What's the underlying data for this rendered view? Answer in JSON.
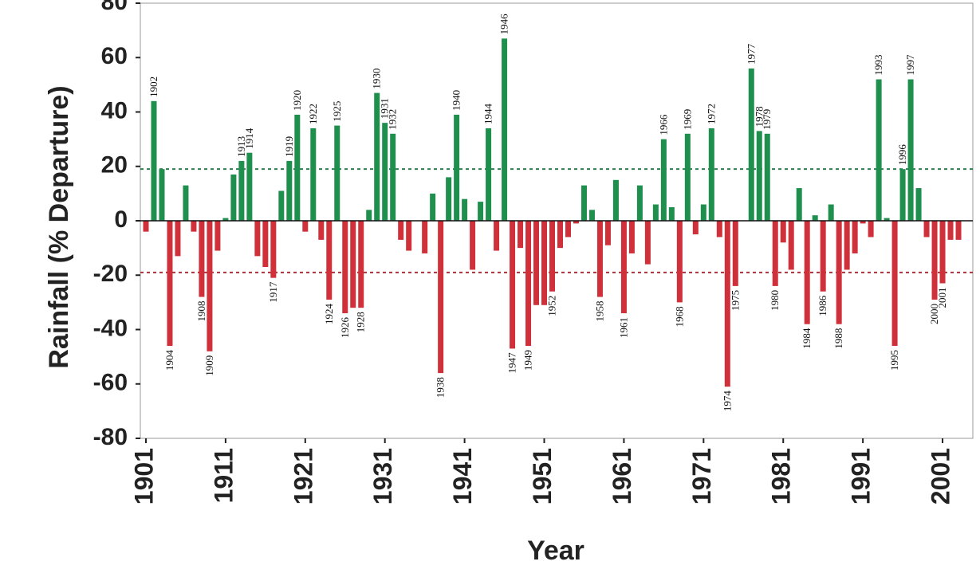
{
  "chart_data": {
    "type": "bar",
    "x_label": "Year",
    "y_label": "Rainfall (% Departure)",
    "x": [
      1901,
      1902,
      1903,
      1904,
      1905,
      1906,
      1907,
      1908,
      1909,
      1910,
      1911,
      1912,
      1913,
      1914,
      1915,
      1916,
      1917,
      1918,
      1919,
      1920,
      1921,
      1922,
      1923,
      1924,
      1925,
      1926,
      1927,
      1928,
      1929,
      1930,
      1931,
      1932,
      1933,
      1934,
      1935,
      1936,
      1937,
      1938,
      1939,
      1940,
      1941,
      1942,
      1943,
      1944,
      1945,
      1946,
      1947,
      1948,
      1949,
      1950,
      1951,
      1952,
      1953,
      1954,
      1955,
      1956,
      1957,
      1958,
      1959,
      1960,
      1961,
      1962,
      1963,
      1964,
      1965,
      1966,
      1967,
      1968,
      1969,
      1970,
      1971,
      1972,
      1973,
      1974,
      1975,
      1976,
      1977,
      1978,
      1979,
      1980,
      1981,
      1982,
      1983,
      1984,
      1985,
      1986,
      1987,
      1988,
      1989,
      1990,
      1991,
      1992,
      1993,
      1994,
      1995,
      1996,
      1997,
      1998,
      1999,
      2000,
      2001,
      2002,
      2003
    ],
    "values": [
      -4,
      44,
      19,
      -46,
      -13,
      13,
      -4,
      -28,
      -48,
      -11,
      1,
      17,
      22,
      25,
      -13,
      -17,
      -21,
      11,
      22,
      39,
      -4,
      34,
      -7,
      -29,
      35,
      -34,
      -32,
      -32,
      4,
      47,
      36,
      32,
      -7,
      -11,
      0,
      -12,
      10,
      -56,
      16,
      39,
      8,
      -18,
      7,
      34,
      -11,
      67,
      -47,
      -10,
      -46,
      -31,
      -31,
      -26,
      -10,
      -6,
      -1,
      13,
      4,
      -28,
      -9,
      15,
      -34,
      -12,
      13,
      -16,
      6,
      30,
      5,
      -30,
      32,
      -5,
      6,
      34,
      -6,
      -61,
      -24,
      0,
      56,
      33,
      32,
      -24,
      -8,
      -18,
      12,
      -38,
      2,
      -26,
      6,
      -38,
      -18,
      -12,
      -1,
      -6,
      52,
      1,
      -46,
      19,
      52,
      12,
      -6,
      -29,
      -23,
      -7,
      -7
    ],
    "positive_color": "#1f8f4e",
    "negative_color": "#d0303a",
    "xlim": [
      1900.3,
      2004.8
    ],
    "xticks": [
      1901,
      1911,
      1921,
      1931,
      1941,
      1951,
      1961,
      1971,
      1981,
      1991,
      2001
    ],
    "ylim": [
      -80,
      80
    ],
    "yticks": [
      -80,
      -60,
      -40,
      -20,
      0,
      20,
      40,
      60,
      80
    ],
    "reference_lines": [
      {
        "value": 19,
        "color": "#2e7d4f"
      },
      {
        "value": -19,
        "color": "#a8323a"
      }
    ],
    "annotations": [
      "1902",
      "1904",
      "1908",
      "1909",
      "1913",
      "1914",
      "1917",
      "1919",
      "1920",
      "1922",
      "1924",
      "1925",
      "1926",
      "1928",
      "1930",
      "1931",
      "1932",
      "1938",
      "1940",
      "1944",
      "1946",
      "1947",
      "1949",
      "1952",
      "1958",
      "1961",
      "1966",
      "1968",
      "1969",
      "1972",
      "1974",
      "1975",
      "1977",
      "1978",
      "1979",
      "1980",
      "1984",
      "1986",
      "1988",
      "1993",
      "1995",
      "1996",
      "1997",
      "2000",
      "2001"
    ]
  }
}
